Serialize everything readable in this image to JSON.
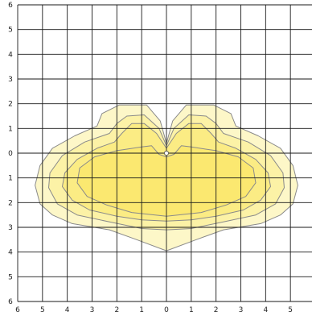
{
  "chart_data": {
    "type": "area",
    "title": "",
    "xlabel": "",
    "ylabel": "",
    "xlim": [
      -6,
      6
    ],
    "ylim": [
      -6,
      6
    ],
    "grid": true,
    "x_tick_labels": [
      "6",
      "5",
      "4",
      "3",
      "2",
      "1",
      "0",
      "1",
      "2",
      "3",
      "4",
      "5",
      "6"
    ],
    "y_tick_labels": [
      "6",
      "5",
      "4",
      "3",
      "2",
      "1",
      "0",
      "1",
      "2",
      "3",
      "4",
      "5",
      "6"
    ],
    "contours": [
      {
        "level": 1,
        "fill": "#fdf7c8",
        "points": [
          [
            0,
            0.4
          ],
          [
            0.25,
            1.3
          ],
          [
            0.8,
            1.95
          ],
          [
            1.9,
            1.95
          ],
          [
            2.6,
            1.6
          ],
          [
            2.8,
            1.1
          ],
          [
            3.7,
            0.7
          ],
          [
            4.6,
            0.2
          ],
          [
            5.1,
            -0.5
          ],
          [
            5.3,
            -1.3
          ],
          [
            5.1,
            -2.05
          ],
          [
            4.6,
            -2.5
          ],
          [
            3.8,
            -2.85
          ],
          [
            2.3,
            -3.1
          ],
          [
            1.2,
            -3.5
          ],
          [
            0,
            -3.95
          ],
          [
            -1.2,
            -3.5
          ],
          [
            -2.3,
            -3.1
          ],
          [
            -3.8,
            -2.85
          ],
          [
            -4.6,
            -2.5
          ],
          [
            -5.1,
            -2.05
          ],
          [
            -5.3,
            -1.3
          ],
          [
            -5.1,
            -0.5
          ],
          [
            -4.6,
            0.2
          ],
          [
            -3.7,
            0.7
          ],
          [
            -2.8,
            1.1
          ],
          [
            -2.6,
            1.6
          ],
          [
            -1.9,
            1.95
          ],
          [
            -0.8,
            1.95
          ],
          [
            -0.25,
            1.3
          ]
        ]
      },
      {
        "level": 2,
        "fill": "#fcf2a6",
        "points": [
          [
            0,
            0.3
          ],
          [
            0.3,
            1.0
          ],
          [
            0.9,
            1.55
          ],
          [
            1.6,
            1.5
          ],
          [
            2.0,
            1.2
          ],
          [
            2.3,
            0.8
          ],
          [
            3.3,
            0.45
          ],
          [
            4.2,
            -0.1
          ],
          [
            4.7,
            -0.8
          ],
          [
            4.75,
            -1.4
          ],
          [
            4.4,
            -2.05
          ],
          [
            3.6,
            -2.5
          ],
          [
            2.2,
            -2.8
          ],
          [
            1.0,
            -3.05
          ],
          [
            0,
            -3.1
          ],
          [
            -1.0,
            -3.05
          ],
          [
            -2.2,
            -2.8
          ],
          [
            -3.6,
            -2.5
          ],
          [
            -4.4,
            -2.05
          ],
          [
            -4.75,
            -1.4
          ],
          [
            -4.7,
            -0.8
          ],
          [
            -4.2,
            -0.1
          ],
          [
            -3.3,
            0.45
          ],
          [
            -2.3,
            0.8
          ],
          [
            -2.0,
            1.2
          ],
          [
            -1.6,
            1.5
          ],
          [
            -0.9,
            1.55
          ],
          [
            -0.3,
            1.0
          ]
        ]
      },
      {
        "level": 3,
        "fill": "#fbec84",
        "points": [
          [
            0,
            0.2
          ],
          [
            0.4,
            0.8
          ],
          [
            0.9,
            1.2
          ],
          [
            1.4,
            1.2
          ],
          [
            1.8,
            0.8
          ],
          [
            2.1,
            0.45
          ],
          [
            2.8,
            0.2
          ],
          [
            3.6,
            -0.25
          ],
          [
            4.1,
            -0.8
          ],
          [
            4.2,
            -1.35
          ],
          [
            3.8,
            -1.9
          ],
          [
            3.1,
            -2.3
          ],
          [
            2.0,
            -2.55
          ],
          [
            1.0,
            -2.7
          ],
          [
            0,
            -2.75
          ],
          [
            -1.0,
            -2.7
          ],
          [
            -2.0,
            -2.55
          ],
          [
            -3.1,
            -2.3
          ],
          [
            -3.8,
            -1.9
          ],
          [
            -4.2,
            -1.35
          ],
          [
            -4.1,
            -0.8
          ],
          [
            -3.6,
            -0.25
          ],
          [
            -2.8,
            0.2
          ],
          [
            -2.1,
            0.45
          ],
          [
            -1.8,
            0.8
          ],
          [
            -1.4,
            1.2
          ],
          [
            -0.9,
            1.2
          ],
          [
            -0.4,
            0.8
          ]
        ]
      },
      {
        "level": 4,
        "fill": "#fbe870",
        "points": [
          [
            0,
            -0.15
          ],
          [
            0.3,
            -0.05
          ],
          [
            0.6,
            0.3
          ],
          [
            1.0,
            0.25
          ],
          [
            2.0,
            0.1
          ],
          [
            2.9,
            -0.15
          ],
          [
            3.5,
            -0.6
          ],
          [
            3.6,
            -1.2
          ],
          [
            3.2,
            -1.75
          ],
          [
            2.4,
            -2.1
          ],
          [
            1.4,
            -2.4
          ],
          [
            0,
            -2.55
          ],
          [
            -1.4,
            -2.4
          ],
          [
            -2.4,
            -2.1
          ],
          [
            -3.2,
            -1.75
          ],
          [
            -3.6,
            -1.2
          ],
          [
            -3.5,
            -0.6
          ],
          [
            -2.9,
            -0.15
          ],
          [
            -2.0,
            0.1
          ],
          [
            -1.0,
            0.25
          ],
          [
            -0.6,
            0.3
          ],
          [
            -0.3,
            -0.05
          ]
        ]
      }
    ],
    "center_point": [
      0,
      0
    ],
    "colors": {
      "grid": "#1a1a1a",
      "contour_stroke": "#8a8a8a",
      "axis": "#1a1a1a"
    }
  }
}
